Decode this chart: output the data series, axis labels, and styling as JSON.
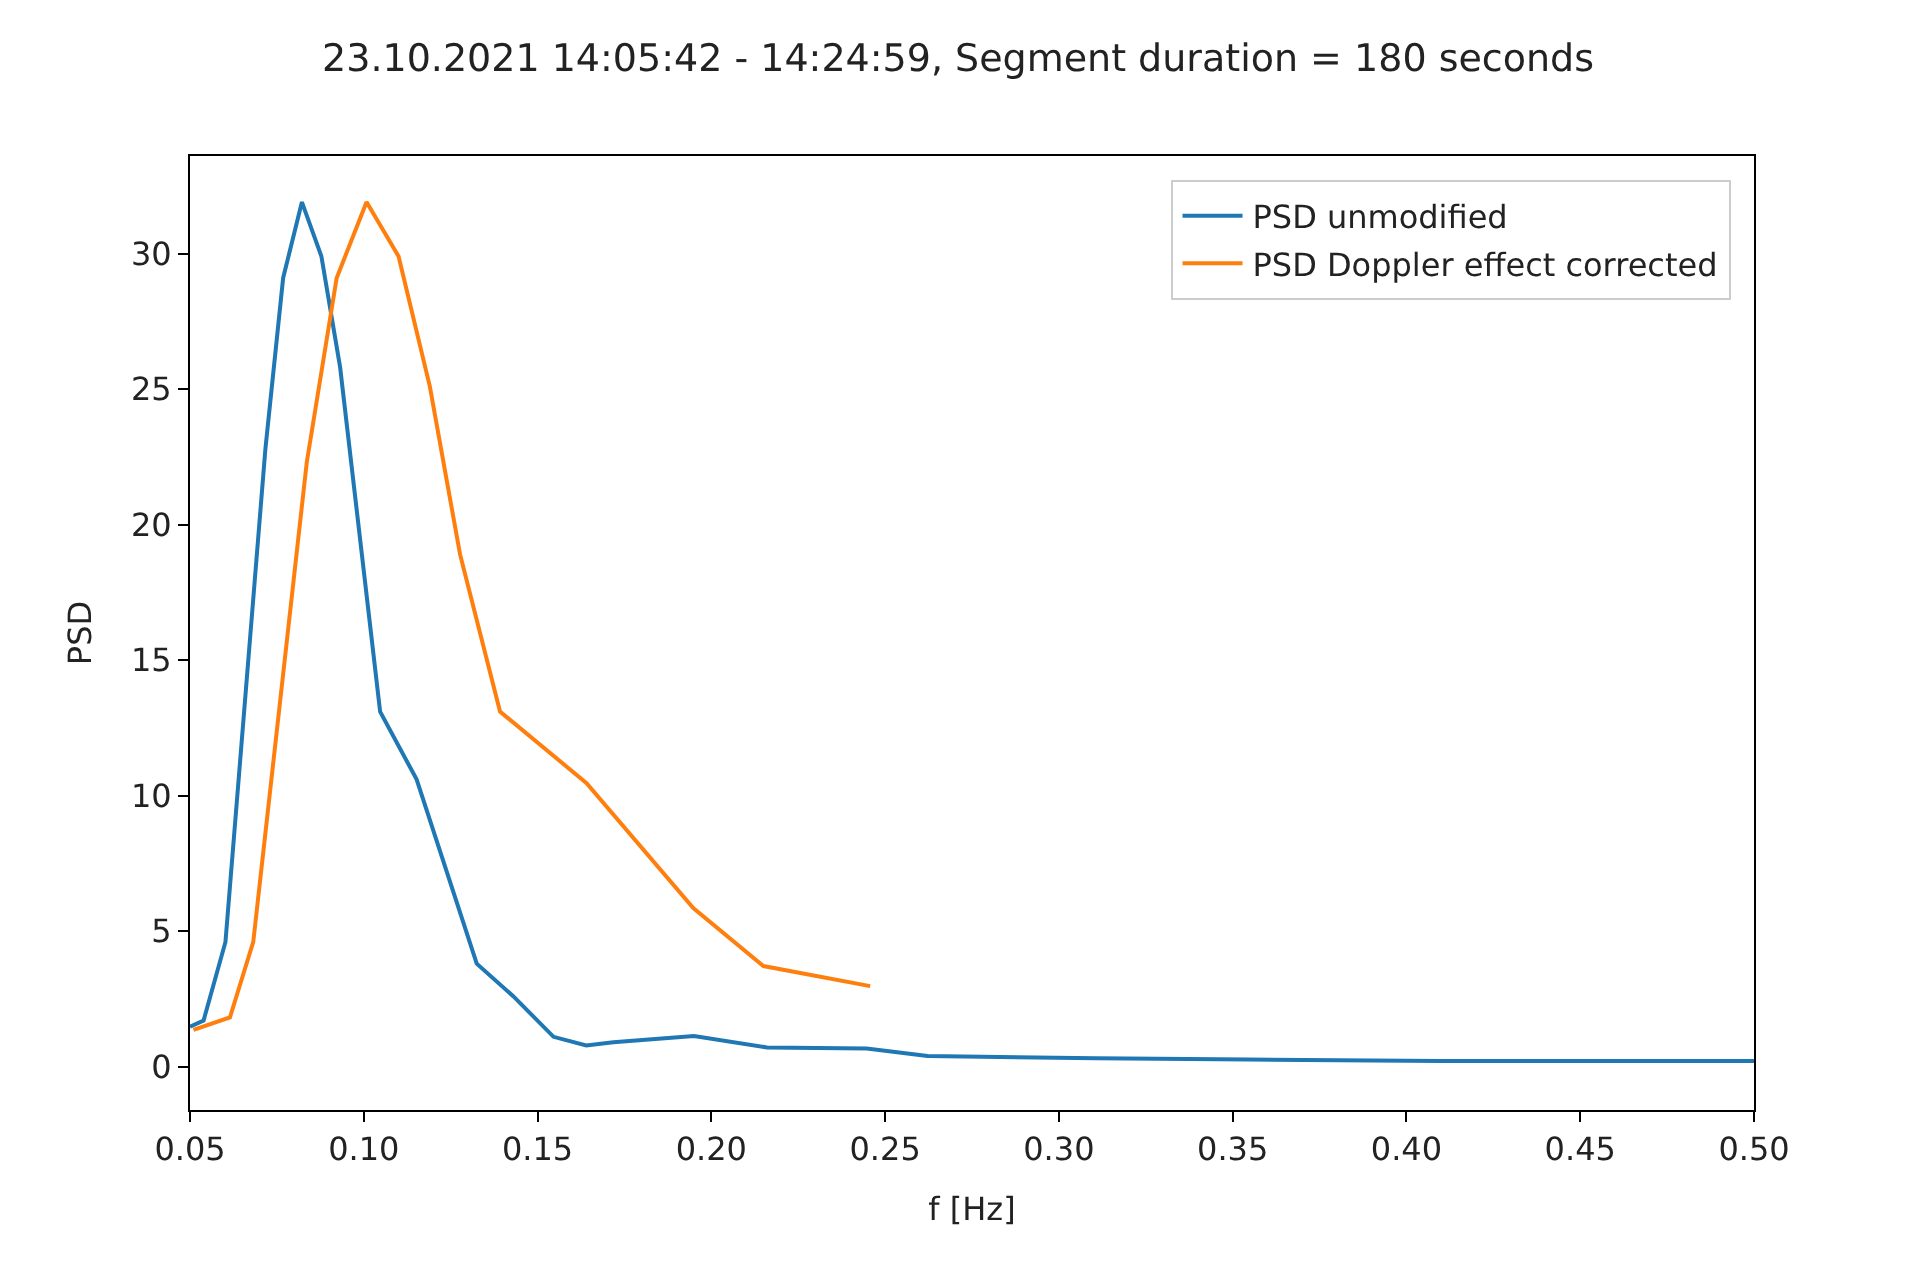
{
  "chart_data": {
    "type": "line",
    "title": "23.10.2021 14:05:42 - 14:24:59, Segment duration = 180 seconds",
    "xlabel": "f [Hz]",
    "ylabel": "PSD",
    "xlim": [
      0.05,
      0.5
    ],
    "xticks": [
      {
        "value": 0.05,
        "label": "0.05"
      },
      {
        "value": 0.1,
        "label": "0.10"
      },
      {
        "value": 0.15,
        "label": "0.15"
      },
      {
        "value": 0.2,
        "label": "0.20"
      },
      {
        "value": 0.25,
        "label": "0.25"
      },
      {
        "value": 0.3,
        "label": "0.30"
      },
      {
        "value": 0.35,
        "label": "0.35"
      },
      {
        "value": 0.4,
        "label": "0.40"
      },
      {
        "value": 0.45,
        "label": "0.45"
      },
      {
        "value": 0.5,
        "label": "0.50"
      }
    ],
    "ylim": [
      -1.6,
      33.6
    ],
    "yticks": [
      0,
      5,
      10,
      15,
      20,
      25,
      30
    ],
    "legend": "top right",
    "marker": "none",
    "line_style": "solid",
    "series": [
      {
        "name": "PSD unmodified",
        "color": "#1f77b4",
        "x": [
          0.05,
          0.0539,
          0.0602,
          0.0717,
          0.0768,
          0.0822,
          0.0878,
          0.0932,
          0.1047,
          0.1152,
          0.1325,
          0.143,
          0.1546,
          0.164,
          0.1718,
          0.195,
          0.216,
          0.2447,
          0.2622,
          0.3107,
          0.3547,
          0.4097,
          0.5
        ],
        "values": [
          1.47,
          1.7,
          4.6,
          22.8,
          29.1,
          31.9,
          29.9,
          25.8,
          13.1,
          10.6,
          3.8,
          2.6,
          1.1,
          0.78,
          0.9,
          1.13,
          0.71,
          0.67,
          0.39,
          0.31,
          0.26,
          0.21,
          0.21
        ]
      },
      {
        "name": "PSD Doppler effect corrected",
        "color": "#ff7f0e",
        "x": [
          0.051,
          0.0615,
          0.0682,
          0.0836,
          0.0922,
          0.1008,
          0.11,
          0.119,
          0.1277,
          0.1392,
          0.1641,
          0.1948,
          0.215,
          0.2457
        ],
        "values": [
          1.36,
          1.82,
          4.6,
          22.3,
          29.1,
          31.9,
          29.9,
          25.1,
          18.9,
          13.1,
          10.46,
          5.85,
          3.71,
          2.97
        ]
      }
    ]
  }
}
